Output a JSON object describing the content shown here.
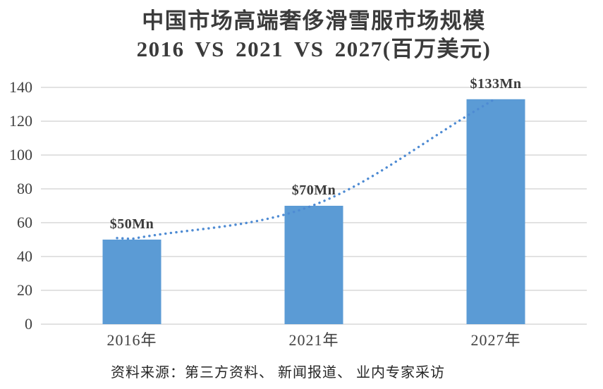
{
  "title": {
    "line1": "中国市场高端奢侈滑雪服市场规模",
    "line2": "2016 VS 2021 VS 2027(百万美元)"
  },
  "source_note": "资料来源：第三方资料、 新闻报道、 业内专家采访",
  "chart_data": {
    "type": "bar",
    "title": "中国市场高端奢侈滑雪服市场规模 2016 VS 2021 VS 2027(百万美元)",
    "categories": [
      "2016年",
      "2021年",
      "2027年"
    ],
    "values": [
      50,
      70,
      133
    ],
    "data_labels": [
      "$50Mn",
      "$70Mn",
      "$133Mn"
    ],
    "xlabel": "",
    "ylabel": "",
    "ylim": [
      0,
      140
    ],
    "yticks": [
      0,
      20,
      40,
      60,
      80,
      100,
      120,
      140
    ],
    "grid": true,
    "legend": false,
    "trendline": {
      "type": "smooth-dotted-line",
      "through": "bar tops",
      "color": "#4e8bd3"
    },
    "colors": {
      "bar": "#5b9bd5",
      "gridline": "#d9d9d9",
      "tick_text": "#404040",
      "title_text": "#3b3b3b",
      "source_text": "#262626"
    }
  }
}
